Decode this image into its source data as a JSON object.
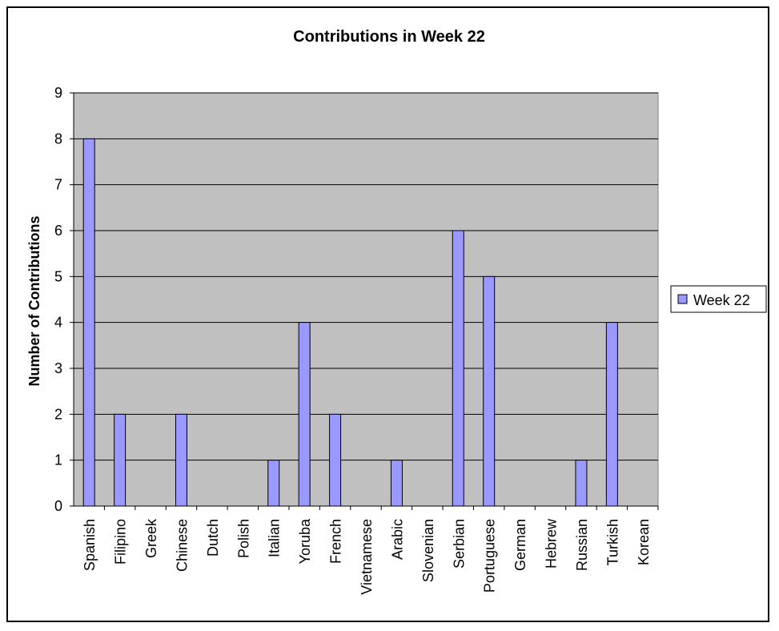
{
  "chart_data": {
    "type": "bar",
    "title": "Contributions in Week 22",
    "ylabel": "Number of Contributions",
    "xlabel": "",
    "categories": [
      "Spanish",
      "Filipino",
      "Greek",
      "Chinese",
      "Dutch",
      "Polish",
      "Italian",
      "Yoruba",
      "French",
      "Vietnamese",
      "Arabic",
      "Slovenian",
      "Serbian",
      "Portuguese",
      "German",
      "Hebrew",
      "Russian",
      "Turkish",
      "Korean"
    ],
    "series": [
      {
        "name": "Week 22",
        "values": [
          8,
          2,
          0,
          2,
          0,
          0,
          1,
          4,
          2,
          0,
          1,
          0,
          6,
          5,
          0,
          0,
          1,
          4,
          0
        ]
      }
    ],
    "ylim": [
      0,
      9
    ],
    "yticks": [
      "0",
      "1",
      "2",
      "3",
      "4",
      "5",
      "6",
      "7",
      "8",
      "9"
    ],
    "grid": true,
    "legend_position": "right",
    "colors": {
      "bar": "#9999ff",
      "plot_bg": "#c0c0c0",
      "grid": "#000000"
    }
  }
}
